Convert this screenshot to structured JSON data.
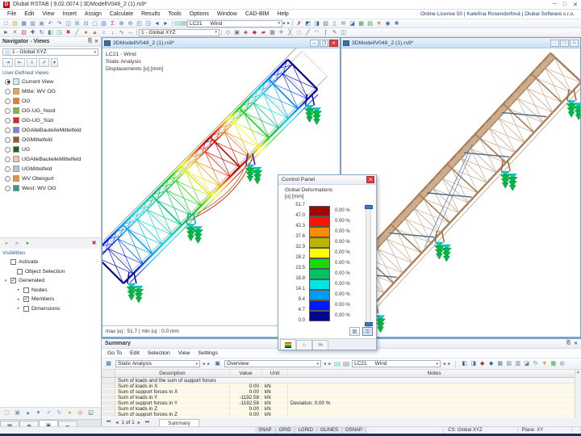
{
  "window": {
    "title": "Dlubal RSTAB | 9.02.0074 | 3DModellV048_2 (1).rs9*",
    "license": "Online License 50 | Kateřina Rosendorfová | Dlubal Software s.r.o.",
    "minimize": "─",
    "maximize": "□",
    "close": "✕"
  },
  "menu": {
    "items": [
      "File",
      "Edit",
      "View",
      "Insert",
      "Assign",
      "Calculate",
      "Results",
      "Tools",
      "Options",
      "Window",
      "CAD-BIM",
      "Help"
    ]
  },
  "toolbar1": {
    "left_icons": [
      [
        "new-icon",
        "□",
        "#4878b0"
      ],
      [
        "open-icon",
        "▤",
        "#d8a040"
      ],
      [
        "save-icon",
        "▦",
        "#4878b0"
      ],
      [
        "print-icon",
        "▥",
        "#607890"
      ],
      [
        "copy-icon",
        "▣",
        "#8098b0"
      ],
      [
        "undo-icon",
        "↶",
        "#3868a8"
      ],
      [
        "redo-icon",
        "↷",
        "#3868a8"
      ],
      [
        "window-cascade-icon",
        "◫",
        "#4888c8"
      ],
      [
        "window-tile-icon",
        "⊞",
        "#4888c8"
      ],
      [
        "window-horizontal-icon",
        "⊟",
        "#4888c8"
      ],
      [
        "single-window-icon",
        "▢",
        "#4888c8"
      ],
      [
        "render-mode-icon",
        "▧",
        "#4888c8"
      ],
      [
        "calculate-icon",
        "Σ",
        "#b04030"
      ],
      [
        "zoom-in-icon",
        "⊕",
        "#3868a8"
      ],
      [
        "zoom-out-icon",
        "⊖",
        "#3868a8"
      ],
      [
        "zoom-window-icon",
        "◰",
        "#3868a8"
      ],
      [
        "zoom-all-icon",
        "◳",
        "#3868a8"
      ],
      [
        "previous-view-icon",
        "◄",
        "#3868a8"
      ],
      [
        "next-view-icon",
        "►",
        "#3868a8"
      ]
    ],
    "lc_swatch1": "#b0e8e8",
    "lc_swatch2": "#c8c8c8",
    "load_case": "LC21",
    "load_case_name": "Wind",
    "right_icons": [
      [
        "show-results-icon",
        "✗",
        "#c03030"
      ],
      [
        "results-diagram-icon",
        "◩",
        "#3868a8"
      ],
      [
        "panel-icon",
        "◨",
        "#3868a8"
      ],
      [
        "print-graphic-icon",
        "▨",
        "#607890"
      ],
      [
        "clipboard-icon",
        "▯",
        "#a07850"
      ],
      [
        "mail-icon",
        "✉",
        "#607890"
      ],
      [
        "display-icon",
        "◪",
        "#3868a8"
      ],
      [
        "tables-icon",
        "▦",
        "#38a058"
      ],
      [
        "excel-icon",
        "▤",
        "#38a058"
      ],
      [
        "filter-icon",
        "▼",
        "#c0a030"
      ],
      [
        "visibility-icon",
        "◉",
        "#3868a8"
      ],
      [
        "settings-icon",
        "✱",
        "#607890"
      ]
    ]
  },
  "toolbar2": {
    "left_icons": [
      [
        "select-icon",
        "►",
        "#3868a8"
      ],
      [
        "deselect-icon",
        "✕",
        "#c05050"
      ],
      [
        "select-special-icon",
        "▧",
        "#c05050"
      ],
      [
        "move-icon",
        "✚",
        "#3868a8"
      ],
      [
        "rotate-icon",
        "↻",
        "#3868a8"
      ],
      [
        "mirror-icon",
        "◧",
        "#38a058"
      ],
      [
        "scale-icon",
        "◳",
        "#38a058"
      ],
      [
        "delete-icon",
        "✖",
        "#c03030"
      ],
      [
        "member-icon",
        "╱",
        "#38a058"
      ],
      [
        "node-icon",
        "●",
        "#c07830"
      ],
      [
        "support-icon",
        "▲",
        "#c07830"
      ],
      [
        "hinge-icon",
        "○",
        "#3868a8"
      ],
      [
        "load-icon",
        "↓",
        "#c03030"
      ],
      [
        "imperfection-icon",
        "∿",
        "#3868a8"
      ],
      [
        "dimension-icon",
        "↔",
        "#607890"
      ]
    ],
    "view_combo": "1 - Global XYZ",
    "right_icons": [
      [
        "isometric-icon",
        "◇",
        "#3868a8"
      ],
      [
        "view-x-icon",
        "▣",
        "#607890"
      ],
      [
        "view-y-icon",
        "◈",
        "#c03060"
      ],
      [
        "view-z-icon",
        "◆",
        "#c03060"
      ],
      [
        "work-plane-icon",
        "▰",
        "#c05050"
      ],
      [
        "grid-icon",
        "▦",
        "#607890"
      ],
      [
        "snap-icon",
        "✛",
        "#607890"
      ],
      [
        "guideline-icon",
        "╳",
        "#607890"
      ],
      [
        "comment-icon",
        "◻",
        "#c0a030"
      ],
      [
        "line-icon",
        "╱",
        "#3868a8"
      ],
      [
        "arc-icon",
        "◠",
        "#3868a8"
      ],
      [
        "spline-icon",
        "∫",
        "#3868a8"
      ],
      [
        "measure-icon",
        "✎",
        "#607890"
      ],
      [
        "table-icon",
        "◫",
        "#38a058"
      ]
    ]
  },
  "navigator": {
    "title": "Navigator - Views",
    "pin": "⎘",
    "close": "✕",
    "combo": "1 - Global XYZ",
    "combo_swatch": "#cfe8f4",
    "view_buttons": [
      [
        "view-xz-icon",
        "⇥"
      ],
      [
        "view-yz-icon",
        "⇤"
      ],
      [
        "view-xy-icon",
        "⇩"
      ],
      [
        "view-iso-icon",
        "⇗"
      ]
    ],
    "section_label": "User-Defined Views",
    "views": [
      {
        "label": "Current View",
        "color": "#cdeef0",
        "selected": true
      },
      {
        "label": "Mitte: WV OG",
        "color": "#f0a830",
        "selected": false
      },
      {
        "label": "OG",
        "color": "#f07828",
        "selected": false
      },
      {
        "label": "OG-UG_Nord",
        "color": "#84b830",
        "selected": false
      },
      {
        "label": "OG-UG_Süd",
        "color": "#e02818",
        "selected": false
      },
      {
        "label": "OGAlleBauteileMittelfeld",
        "color": "#8080e4",
        "selected": false
      },
      {
        "label": "OGMittelfeld",
        "color": "#a05a28",
        "selected": false
      },
      {
        "label": "UG",
        "color": "#1d681d",
        "selected": false
      },
      {
        "label": "UGAlleBauteileMittelfeld",
        "color": "#eccaa8",
        "selected": false
      },
      {
        "label": "UGMittelfeld",
        "color": "#a8ccdc",
        "selected": false
      },
      {
        "label": "WV Obergurt",
        "color": "#f09030",
        "selected": false
      },
      {
        "label": "West: WV OG",
        "color": "#2aa188",
        "selected": false
      }
    ],
    "vis_toolbar": [
      [
        "visibility-user-icon",
        "▸",
        "#d8a040"
      ],
      [
        "visibility-generated-icon",
        "▹",
        "#3868a8"
      ],
      [
        "visibility-all-icon",
        "▸",
        "#38a058"
      ]
    ],
    "vis_cancel": [
      "visibility-cancel-icon",
      "✖",
      "#c03030"
    ],
    "visibilities": {
      "label": "Visibilities",
      "items": [
        {
          "label": "Activate",
          "checked": false,
          "indent": 0,
          "arrow": ""
        },
        {
          "label": "Object Selection",
          "checked": false,
          "indent": 1,
          "arrow": ""
        },
        {
          "label": "Generated",
          "checked": true,
          "indent": 0,
          "arrow": "▾"
        },
        {
          "label": "Nodes",
          "checked": false,
          "indent": 2,
          "arrow": "▸"
        },
        {
          "label": "Members",
          "checked": true,
          "indent": 2,
          "arrow": "▸"
        },
        {
          "label": "Dimensions",
          "checked": false,
          "indent": 2,
          "arrow": "▸"
        }
      ]
    },
    "bottom_toolbar": [
      [
        "new-view-icon",
        "▢",
        "#d8a040"
      ],
      [
        "copy-view-icon",
        "▣",
        "#8098b0"
      ],
      [
        "arrow-up-icon",
        "▴",
        "#3868a8"
      ],
      [
        "arrow-down-icon",
        "▾",
        "#3868a8"
      ],
      [
        "check-icon",
        "✓",
        "#38a058"
      ],
      [
        "sync-icon",
        "↻",
        "#8098b0"
      ],
      [
        "lamp-icon",
        "●",
        "#d8b020"
      ],
      [
        "target-icon",
        "◎",
        "#d87820"
      ],
      [
        "fullscreen-icon",
        "◱",
        "#404040"
      ]
    ],
    "tabs": [
      [
        "display-tab",
        "▦"
      ],
      [
        "views-tab",
        "◉"
      ],
      [
        "camera-tab",
        "▣"
      ],
      [
        "filter-tab",
        "╾"
      ]
    ]
  },
  "viewport_left": {
    "title": "3DModellV048_2 (1).rs9*",
    "overlay": {
      "line1": "LC21 - Wind",
      "line2": "Static Analysis",
      "line3": "Displacements [u] [mm]"
    },
    "status": "max |u| : 51.7 | min |u| : 0.0 mm"
  },
  "viewport_right": {
    "title": "3DModellV048_2 (1).rs9*"
  },
  "control_panel": {
    "title": "Control Panel",
    "close": "✕",
    "label_line1": "Global Deformations",
    "label_line2": "[u] [mm]",
    "values": [
      "51.7",
      "47.0",
      "42.3",
      "37.6",
      "32.9",
      "28.2",
      "23.5",
      "18.8",
      "14.1",
      "9.4",
      "4.7",
      "0.0"
    ],
    "bands": [
      {
        "color": "#a00808",
        "percent": "0.00 %"
      },
      {
        "color": "#f81400",
        "percent": "0.00 %"
      },
      {
        "color": "#fc8c00",
        "percent": "0.00 %"
      },
      {
        "color": "#bcb400",
        "percent": "0.00 %"
      },
      {
        "color": "#fcfc00",
        "percent": "0.00 %"
      },
      {
        "color": "#14dc00",
        "percent": "0.00 %"
      },
      {
        "color": "#00c464",
        "percent": "0.00 %"
      },
      {
        "color": "#00e4e4",
        "percent": "0.00 %"
      },
      {
        "color": "#009cf0",
        "percent": "0.00 %"
      },
      {
        "color": "#0018fc",
        "percent": "0.00 %"
      },
      {
        "color": "#000890",
        "percent": "0.00 %"
      }
    ],
    "buttons": [
      [
        "print-panel-icon",
        "▨"
      ],
      [
        "panel-options-icon",
        "◫"
      ]
    ],
    "tabs": [
      [
        "colors-tab",
        ""
      ],
      [
        "home-tab",
        "⌂"
      ],
      [
        "percent-tab",
        "%"
      ]
    ]
  },
  "summary": {
    "title": "Summary",
    "pin": "⎘",
    "close": "✕",
    "menu": [
      "Go To",
      "Edit",
      "Selection",
      "View",
      "Settings"
    ],
    "combo1": "Static Analysis",
    "combo2": "Overview",
    "lc_swatch1": "#b0e8e8",
    "lc_swatch2": "#c8c8c8",
    "load_case": "LC21",
    "load_case_name": "Wind",
    "right_icons": [
      [
        "select-rows-icon",
        "◧",
        "#3868a8"
      ],
      [
        "select-all-icon",
        "◨",
        "#3868a8"
      ],
      [
        "result-red-icon",
        "◆",
        "#c03030"
      ],
      [
        "result-blue-icon",
        "◆",
        "#3868a8"
      ],
      [
        "table-view-icon",
        "▦",
        "#607890"
      ],
      [
        "export-icon",
        "▤",
        "#607890"
      ],
      [
        "print-table-icon",
        "▥",
        "#607890"
      ],
      [
        "chart-icon",
        "◪",
        "#607890"
      ],
      [
        "refresh-icon",
        "↻",
        "#38a058"
      ],
      [
        "filter-table-icon",
        "▼",
        "#c0a030"
      ],
      [
        "excel-export-icon",
        "▦",
        "#38a058"
      ],
      [
        "search-icon",
        "◎",
        "#3868a8"
      ]
    ],
    "table": {
      "headers": [
        "Description",
        "Value",
        "Unit",
        "Notes"
      ],
      "section": "Sum of loads and the sum of support forces",
      "rows": [
        {
          "description": "Sum of loads in X",
          "value": "0.00",
          "unit": "kN",
          "notes": ""
        },
        {
          "description": "Sum of support forces in X",
          "value": "0.00",
          "unit": "kN",
          "notes": ""
        },
        {
          "description": "Sum of loads in Y",
          "value": "-1192.58",
          "unit": "kN",
          "notes": ""
        },
        {
          "description": "Sum of support forces in Y",
          "value": "-1192.58",
          "unit": "kN",
          "notes": "Deviation: 0.00 %"
        },
        {
          "description": "Sum of loads in Z",
          "value": "0.00",
          "unit": "kN",
          "notes": ""
        },
        {
          "description": "Sum of support forces in Z",
          "value": "0.00",
          "unit": "kN",
          "notes": ""
        }
      ]
    },
    "pager": {
      "first": "⏮",
      "prev": "◂",
      "label": "1 of 1",
      "next": "▸",
      "last": "⏭"
    },
    "tab": "Summary"
  },
  "status_bar": {
    "toggles": [
      "SNAP",
      "GRID",
      "LGRID",
      "GLINES",
      "OSNAP"
    ],
    "cs": "CS: Global XYZ",
    "plane": "Plane: XY"
  }
}
